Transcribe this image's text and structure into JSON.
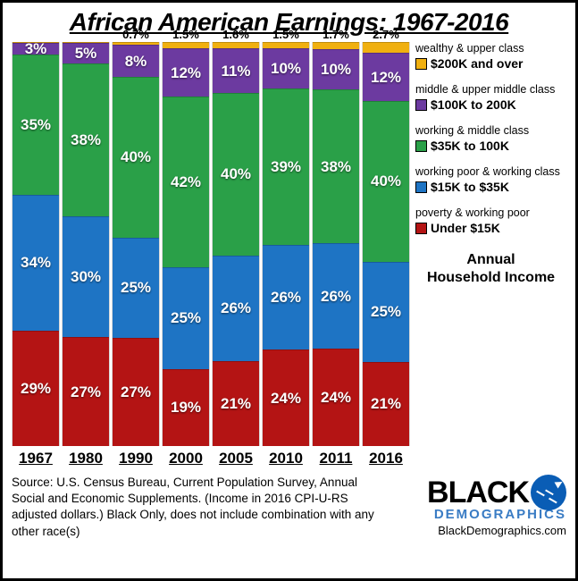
{
  "title": "African American Earnings: 1967-2016",
  "chart": {
    "type": "stacked-bar-100",
    "categories": [
      "1967",
      "1980",
      "1990",
      "2000",
      "2005",
      "2010",
      "2011",
      "2016"
    ],
    "series": [
      {
        "key": "under15k",
        "label": "Under $15K",
        "desc": "poverty & working poor",
        "color": "#b41414"
      },
      {
        "key": "15to35k",
        "label": "$15K to $35K",
        "desc": "working poor & working class",
        "color": "#1e74c4"
      },
      {
        "key": "35to100k",
        "label": "$35K to 100K",
        "desc": "working & middle class",
        "color": "#2aa048"
      },
      {
        "key": "100to200k",
        "label": "$100K to 200K",
        "desc": "middle & upper middle class",
        "color": "#6c3aa0"
      },
      {
        "key": "over200k",
        "label": "$200K and over",
        "desc": "wealthy & upper class",
        "color": "#f0b010"
      }
    ],
    "data": {
      "under15k": [
        29,
        27,
        27,
        19,
        21,
        24,
        24,
        21
      ],
      "15to35k": [
        34,
        30,
        25,
        25,
        26,
        26,
        26,
        25
      ],
      "35to100k": [
        35,
        38,
        40,
        42,
        40,
        39,
        38,
        40
      ],
      "100to200k": [
        3,
        5,
        8,
        12,
        11,
        10,
        10,
        12
      ],
      "over200k": [
        0,
        0,
        0.7,
        1.5,
        1.6,
        1.5,
        1.7,
        2.7
      ]
    },
    "ylim": [
      0,
      100
    ],
    "label_fontsize": 17,
    "label_color": "#ffffff",
    "background_color": "#ffffff",
    "axis_title": "Annual Household Income",
    "top_label_threshold": 0.5,
    "inbar_label_threshold": 2.8
  },
  "source": "Source:  U.S. Census Bureau, Current Population Survey, Annual Social and Economic Supplements.  (Income in 2016 CPI-U-RS adjusted dollars.) Black Only, does not include combination with any other race(s)",
  "brand": {
    "word1": "BLACK",
    "word2": "DEMOGRAPHICS",
    "url": "BlackDemographics.com"
  }
}
